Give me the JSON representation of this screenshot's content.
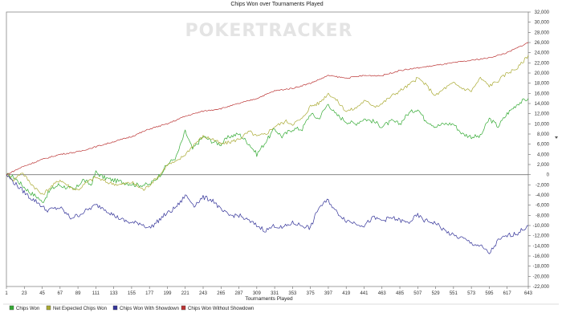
{
  "watermark": "POKERTRACKER",
  "chart_data": {
    "type": "line",
    "title": "Chips Won over Tournaments Played",
    "xlabel": "Tournaments Played",
    "ylabel": "",
    "xlim": [
      1,
      643
    ],
    "ylim": [
      -22000,
      32000
    ],
    "x_ticks": [
      1,
      23,
      45,
      67,
      89,
      111,
      133,
      155,
      177,
      199,
      221,
      243,
      265,
      287,
      309,
      331,
      353,
      375,
      397,
      419,
      441,
      463,
      485,
      507,
      529,
      551,
      573,
      595,
      617,
      643
    ],
    "y_ticks": [
      -22000,
      -20000,
      -18000,
      -16000,
      -14000,
      -12000,
      -10000,
      -8000,
      -6000,
      -4000,
      -2000,
      0,
      2000,
      4000,
      6000,
      8000,
      10000,
      12000,
      14000,
      16000,
      18000,
      20000,
      22000,
      24000,
      26000,
      28000,
      30000,
      32000
    ],
    "y_tick_labels": [
      "-22,000",
      "-20,000",
      "-18,000",
      "-16,000",
      "-14,000",
      "-12,000",
      "-10,000",
      "-8,000",
      "-6,000",
      "-4,000",
      "-2,000",
      "0",
      "2,000",
      "4,000",
      "6,000",
      "8,000",
      "10,000",
      "12,000",
      "14,000",
      "16,000",
      "18,000",
      "20,000",
      "22,000",
      "24,000",
      "26,000",
      "28,000",
      "30,000",
      "32,000"
    ],
    "legend_position": "bottom",
    "grid": false,
    "series": [
      {
        "name": "Chips Won",
        "color": "#33aa33",
        "x": [
          1,
          10,
          20,
          30,
          40,
          45,
          55,
          65,
          75,
          85,
          95,
          105,
          111,
          120,
          130,
          145,
          160,
          177,
          190,
          199,
          210,
          221,
          230,
          243,
          255,
          265,
          275,
          287,
          300,
          309,
          320,
          331,
          340,
          353,
          365,
          375,
          385,
          397,
          405,
          419,
          430,
          441,
          452,
          463,
          475,
          485,
          495,
          507,
          515,
          529,
          540,
          551,
          562,
          573,
          584,
          595,
          606,
          617,
          630,
          643
        ],
        "y": [
          0,
          -500,
          -2000,
          -3500,
          -4500,
          -5500,
          -3000,
          -2000,
          -2500,
          -3000,
          -1000,
          -2000,
          500,
          -500,
          -1000,
          -1500,
          -2000,
          -2000,
          0,
          2000,
          3500,
          8500,
          5000,
          7500,
          6500,
          6000,
          7500,
          8000,
          6000,
          4000,
          6500,
          9000,
          7500,
          9000,
          9000,
          12000,
          11000,
          14000,
          12000,
          10500,
          10000,
          11000,
          10500,
          9500,
          10500,
          10000,
          12000,
          13000,
          11000,
          9500,
          10000,
          10000,
          8000,
          7500,
          7500,
          11000,
          9500,
          12000,
          14000,
          15000
        ]
      },
      {
        "name": "Net Expected Chips Won",
        "color": "#aaaa33",
        "x": [
          1,
          10,
          20,
          30,
          45,
          55,
          67,
          80,
          89,
          100,
          111,
          125,
          140,
          155,
          170,
          177,
          190,
          199,
          210,
          221,
          232,
          243,
          255,
          265,
          278,
          287,
          300,
          309,
          320,
          331,
          345,
          353,
          365,
          375,
          385,
          397,
          405,
          419,
          430,
          441,
          455,
          463,
          475,
          485,
          495,
          507,
          515,
          529,
          540,
          551,
          562,
          573,
          584,
          595,
          606,
          617,
          630,
          643
        ],
        "y": [
          0,
          -1000,
          500,
          -1500,
          -4000,
          -2500,
          -1000,
          -2500,
          -3000,
          -1500,
          -500,
          -1500,
          -2000,
          -1500,
          -3000,
          -2000,
          0,
          2000,
          2500,
          4000,
          6000,
          7500,
          7000,
          6000,
          6500,
          7000,
          8500,
          7500,
          8000,
          9500,
          10500,
          10000,
          11000,
          13500,
          14000,
          16000,
          15000,
          12500,
          13000,
          14500,
          13500,
          14000,
          15500,
          16500,
          17500,
          19000,
          18000,
          15500,
          17000,
          18000,
          17000,
          16500,
          19000,
          17500,
          18500,
          20000,
          21000,
          23500
        ]
      },
      {
        "name": "Chips Won With Showdown",
        "color": "#333399",
        "x": [
          1,
          10,
          20,
          30,
          40,
          50,
          67,
          80,
          89,
          100,
          111,
          120,
          133,
          145,
          155,
          165,
          177,
          185,
          195,
          205,
          215,
          221,
          232,
          243,
          255,
          265,
          275,
          287,
          298,
          309,
          320,
          331,
          340,
          353,
          365,
          375,
          385,
          397,
          405,
          419,
          430,
          441,
          452,
          463,
          475,
          485,
          495,
          507,
          515,
          529,
          540,
          551,
          562,
          573,
          584,
          595,
          606,
          617,
          630,
          643
        ],
        "y": [
          0,
          -1500,
          -3000,
          -4500,
          -5500,
          -7000,
          -6500,
          -8500,
          -8000,
          -7000,
          -6000,
          -6500,
          -8000,
          -9000,
          -9500,
          -9500,
          -10500,
          -9500,
          -8000,
          -7000,
          -5500,
          -4000,
          -6000,
          -4500,
          -5000,
          -7000,
          -8000,
          -8000,
          -9000,
          -10000,
          -11000,
          -10000,
          -10500,
          -9500,
          -10000,
          -10500,
          -6500,
          -5000,
          -7000,
          -9000,
          -9500,
          -10000,
          -8500,
          -9000,
          -8500,
          -9000,
          -9500,
          -8000,
          -9000,
          -9500,
          -11000,
          -12000,
          -12500,
          -13500,
          -14000,
          -15500,
          -13000,
          -12000,
          -11500,
          -10000
        ]
      },
      {
        "name": "Chips Won Without Showdown",
        "color": "#bb3333",
        "x": [
          1,
          20,
          45,
          67,
          89,
          111,
          133,
          155,
          177,
          199,
          221,
          243,
          265,
          287,
          309,
          331,
          353,
          375,
          397,
          419,
          441,
          463,
          485,
          507,
          529,
          551,
          573,
          595,
          617,
          643
        ],
        "y": [
          0,
          1500,
          3000,
          4000,
          4500,
          5500,
          6500,
          7500,
          9000,
          10000,
          11500,
          12500,
          13000,
          14000,
          15000,
          16500,
          17000,
          18000,
          19500,
          19000,
          19500,
          19500,
          20500,
          21000,
          21500,
          22000,
          22500,
          23000,
          24000,
          26000
        ]
      }
    ]
  }
}
